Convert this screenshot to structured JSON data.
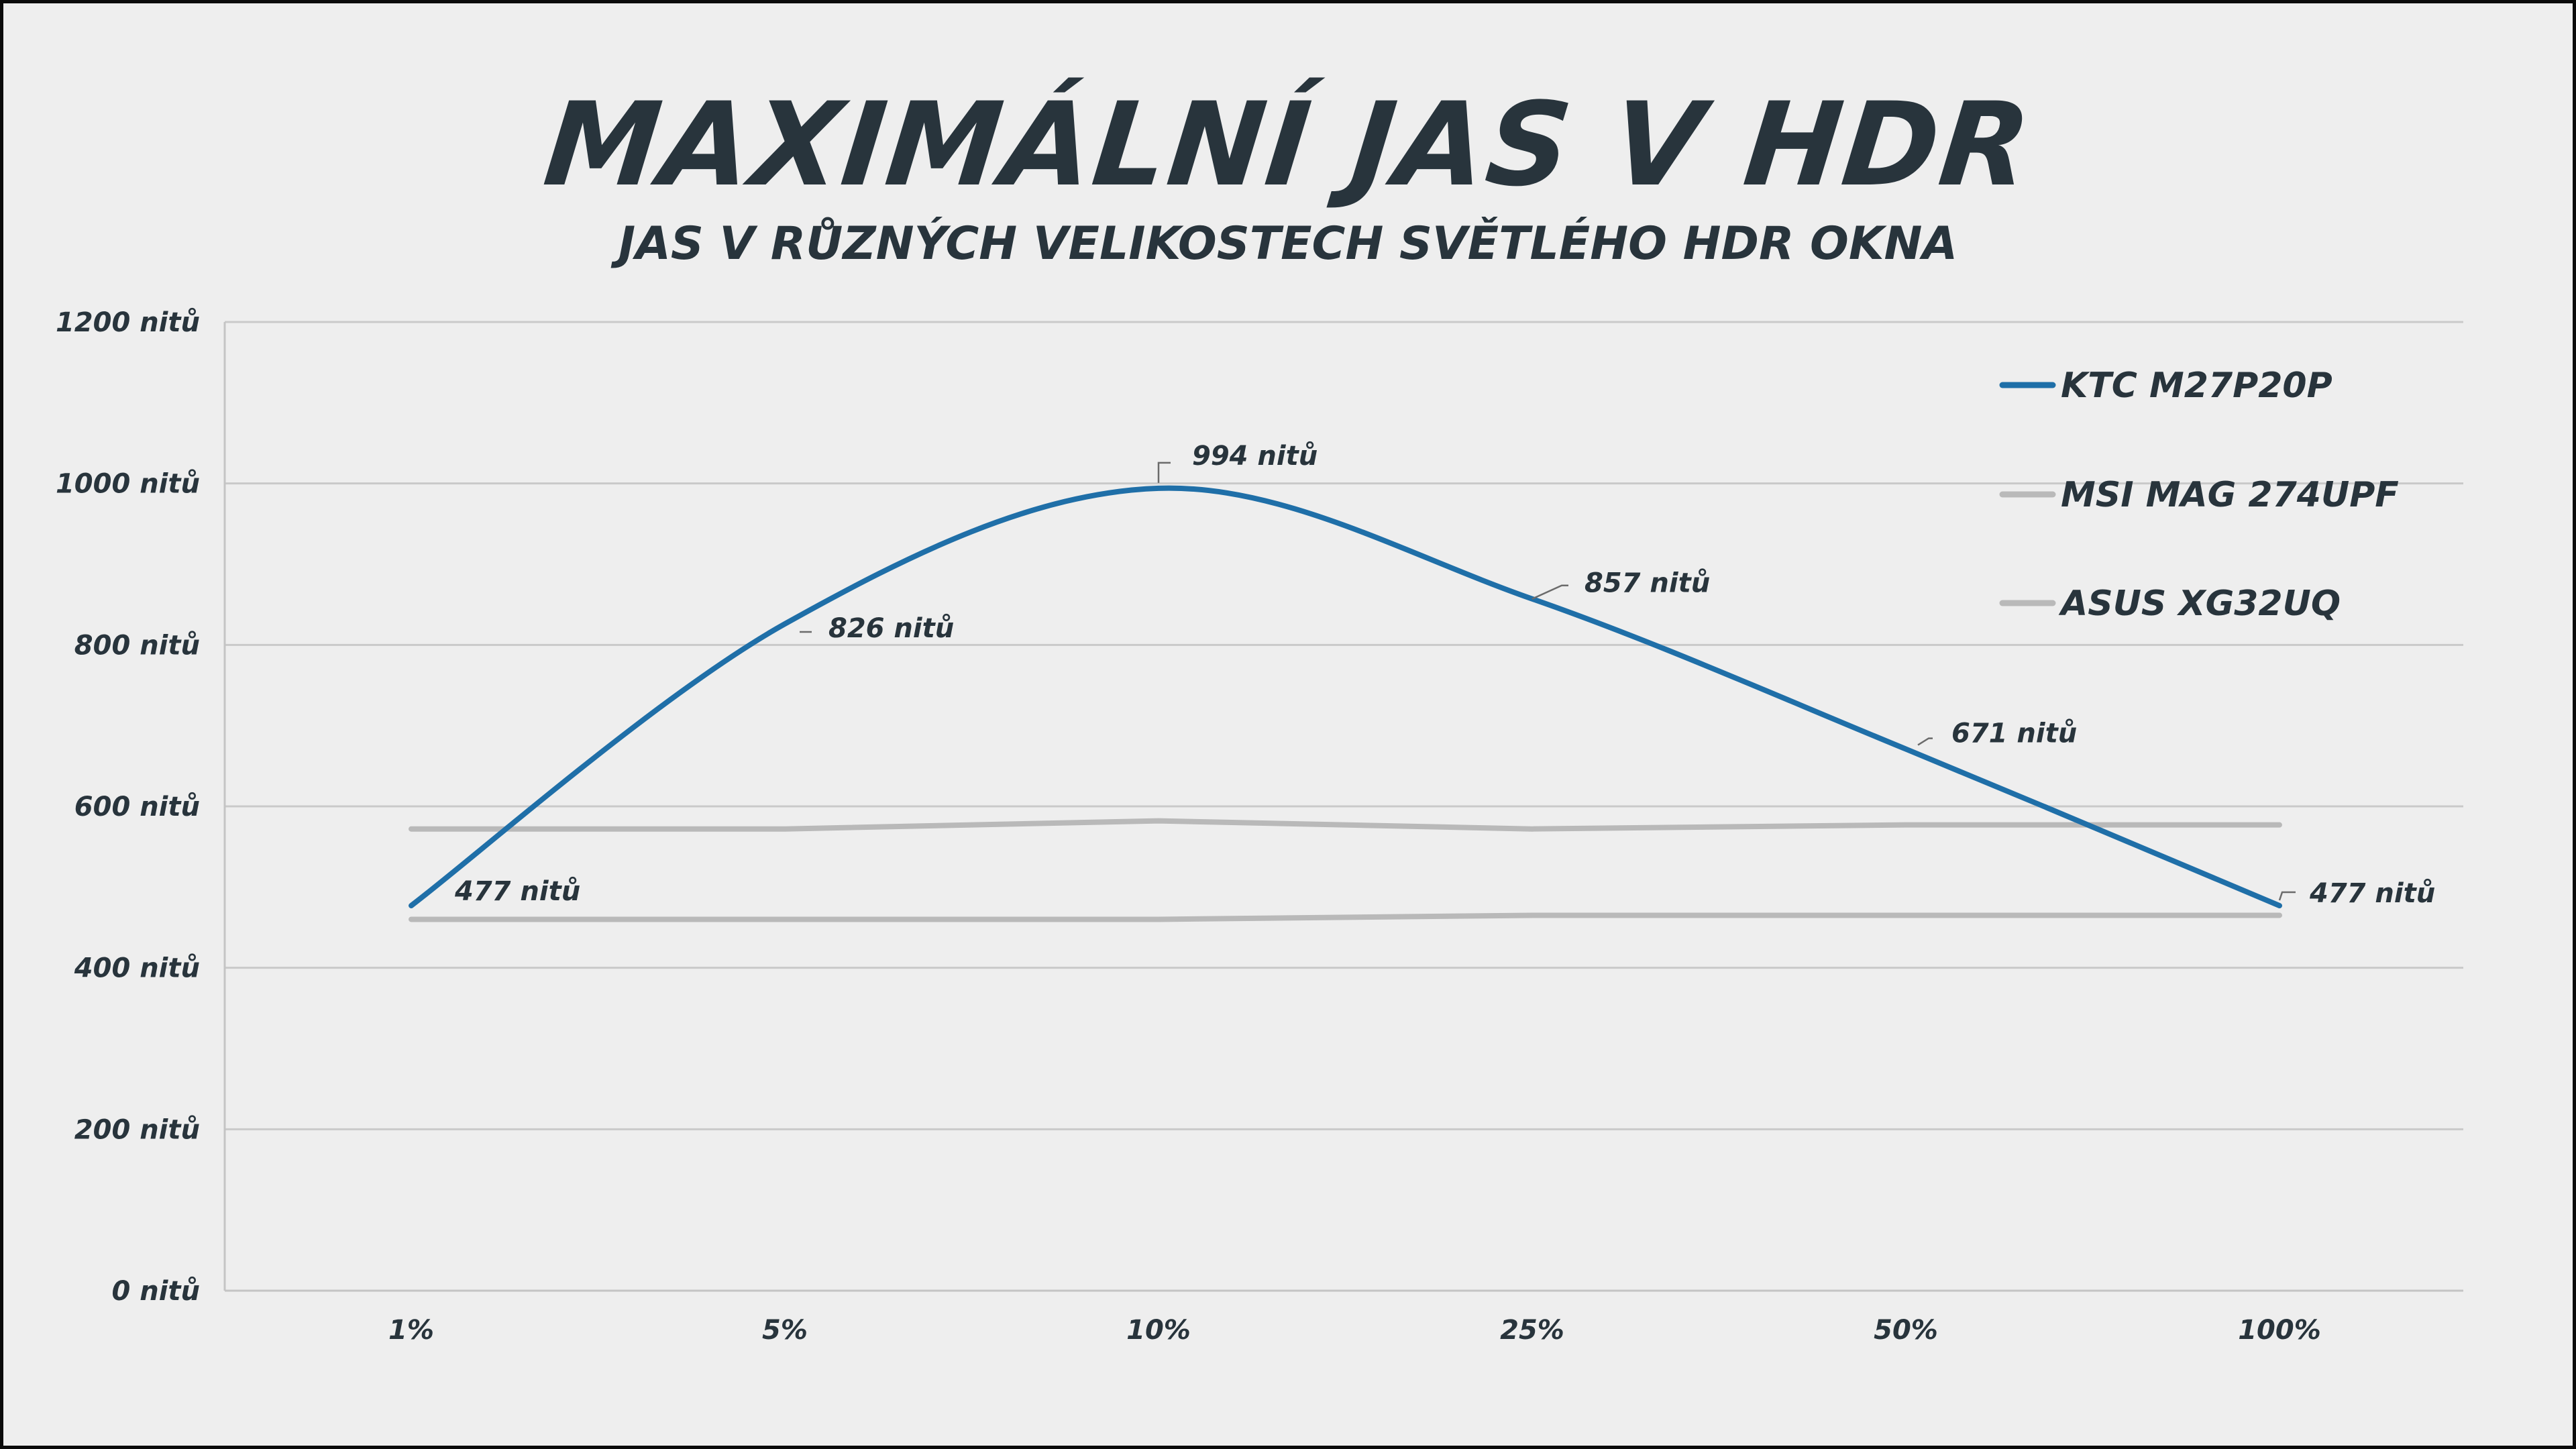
{
  "title": "MAXIMÁLNÍ JAS V HDR",
  "subtitle": "JAS V RŮZNÝCH VELIKOSTECH SVĚTLÉHO HDR OKNA",
  "colors": {
    "primary": "#1f6fa8",
    "secondary": "#b9b9b9",
    "text": "#28343c",
    "background": "#eeeeee"
  },
  "chart_data": {
    "type": "line",
    "title": "MAXIMÁLNÍ JAS V HDR",
    "subtitle": "JAS V RŮZNÝCH VELIKOSTECH SVĚTLÉHO HDR OKNA",
    "categories": [
      "1%",
      "5%",
      "10%",
      "25%",
      "50%",
      "100%"
    ],
    "ylim": [
      0,
      1200
    ],
    "yticks": [
      0,
      200,
      400,
      600,
      800,
      1000,
      1200
    ],
    "ytick_labels": [
      "0 nitů",
      "200 nitů",
      "400 nitů",
      "600 nitů",
      "800 nitů",
      "1000 nitů",
      "1200 nitů"
    ],
    "grid": true,
    "legend_position": "top-right",
    "series": [
      {
        "name": "KTC M27P20P",
        "color": "#1f6fa8",
        "smooth": true,
        "values": [
          477,
          826,
          994,
          857,
          671,
          477
        ],
        "labels": [
          "477 nitů",
          "826 nitů",
          "994 nitů",
          "857 nitů",
          "671 nitů",
          "477 nitů"
        ]
      },
      {
        "name": "MSI MAG 274UPF",
        "color": "#b9b9b9",
        "smooth": false,
        "values": [
          572,
          572,
          582,
          572,
          577,
          577
        ]
      },
      {
        "name": "ASUS XG32UQ",
        "color": "#b9b9b9",
        "smooth": false,
        "values": [
          460,
          460,
          460,
          465,
          465,
          465
        ]
      }
    ]
  }
}
